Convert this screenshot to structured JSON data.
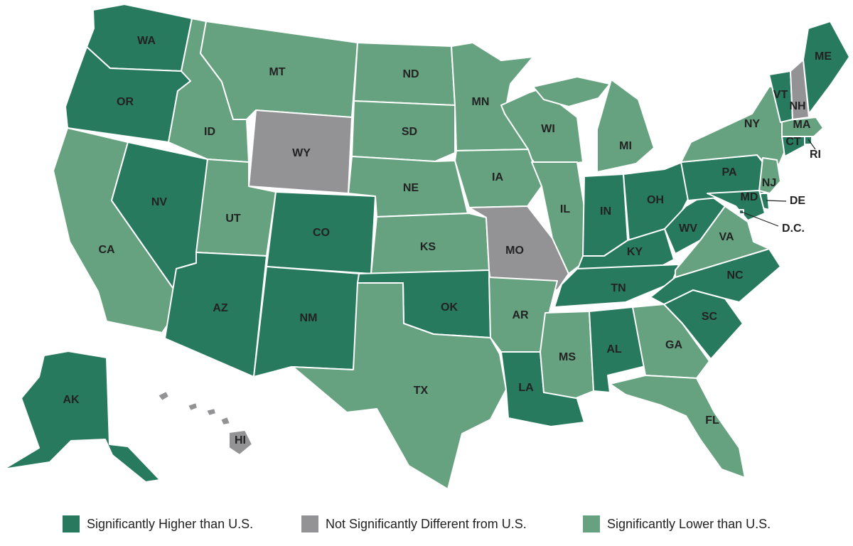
{
  "categories": {
    "higher": {
      "label": "Significantly Higher than U.S.",
      "color": "#277a5e"
    },
    "nodiff": {
      "label": "Not Significantly Different from U.S.",
      "color": "#939396"
    },
    "lower": {
      "label": "Significantly Lower than U.S.",
      "color": "#66a27f"
    }
  },
  "states": [
    {
      "abbr": "WA",
      "category": "higher"
    },
    {
      "abbr": "OR",
      "category": "higher"
    },
    {
      "abbr": "CA",
      "category": "lower"
    },
    {
      "abbr": "NV",
      "category": "higher"
    },
    {
      "abbr": "ID",
      "category": "lower"
    },
    {
      "abbr": "MT",
      "category": "lower"
    },
    {
      "abbr": "WY",
      "category": "nodiff"
    },
    {
      "abbr": "UT",
      "category": "lower"
    },
    {
      "abbr": "AZ",
      "category": "higher"
    },
    {
      "abbr": "CO",
      "category": "higher"
    },
    {
      "abbr": "NM",
      "category": "higher"
    },
    {
      "abbr": "ND",
      "category": "lower"
    },
    {
      "abbr": "SD",
      "category": "lower"
    },
    {
      "abbr": "NE",
      "category": "lower"
    },
    {
      "abbr": "KS",
      "category": "lower"
    },
    {
      "abbr": "OK",
      "category": "higher"
    },
    {
      "abbr": "TX",
      "category": "lower"
    },
    {
      "abbr": "MN",
      "category": "lower"
    },
    {
      "abbr": "IA",
      "category": "lower"
    },
    {
      "abbr": "MO",
      "category": "nodiff"
    },
    {
      "abbr": "AR",
      "category": "lower"
    },
    {
      "abbr": "LA",
      "category": "higher"
    },
    {
      "abbr": "WI",
      "category": "lower"
    },
    {
      "abbr": "IL",
      "category": "lower"
    },
    {
      "abbr": "MI",
      "category": "lower"
    },
    {
      "abbr": "IN",
      "category": "higher"
    },
    {
      "abbr": "OH",
      "category": "higher"
    },
    {
      "abbr": "KY",
      "category": "higher"
    },
    {
      "abbr": "TN",
      "category": "higher"
    },
    {
      "abbr": "MS",
      "category": "lower"
    },
    {
      "abbr": "AL",
      "category": "higher"
    },
    {
      "abbr": "GA",
      "category": "lower"
    },
    {
      "abbr": "FL",
      "category": "lower"
    },
    {
      "abbr": "SC",
      "category": "higher"
    },
    {
      "abbr": "NC",
      "category": "higher"
    },
    {
      "abbr": "VA",
      "category": "lower"
    },
    {
      "abbr": "WV",
      "category": "higher"
    },
    {
      "abbr": "PA",
      "category": "higher"
    },
    {
      "abbr": "NY",
      "category": "lower"
    },
    {
      "abbr": "NJ",
      "category": "lower"
    },
    {
      "abbr": "DE",
      "category": "higher"
    },
    {
      "abbr": "MD",
      "category": "higher"
    },
    {
      "abbr": "D.C.",
      "category": "higher"
    },
    {
      "abbr": "CT",
      "category": "higher"
    },
    {
      "abbr": "RI",
      "category": "higher"
    },
    {
      "abbr": "MA",
      "category": "lower"
    },
    {
      "abbr": "VT",
      "category": "higher"
    },
    {
      "abbr": "NH",
      "category": "nodiff"
    },
    {
      "abbr": "ME",
      "category": "higher"
    },
    {
      "abbr": "AK",
      "category": "higher"
    },
    {
      "abbr": "HI",
      "category": "nodiff"
    }
  ]
}
